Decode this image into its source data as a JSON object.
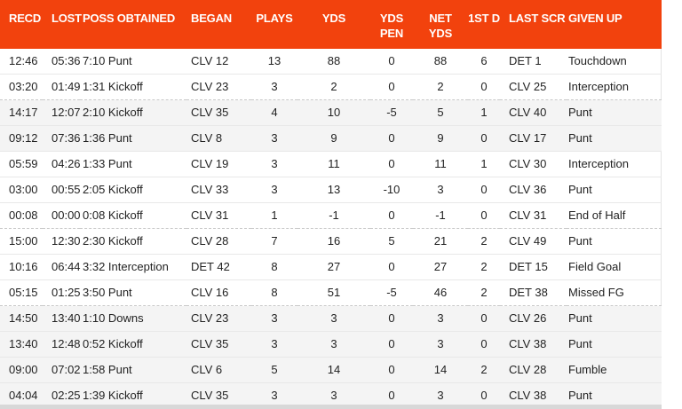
{
  "colors": {
    "header_bg": "#f2420d",
    "header_text": "#ffffff",
    "row_text": "#222222",
    "shaded_row_bg": "#f4f4f4",
    "row_divider": "#e8e8e8",
    "quarter_divider": "#c9c9c9",
    "bottom_bar": "#d8d8d8"
  },
  "table": {
    "columns": [
      {
        "key": "recd",
        "label_lines": [
          "RECD"
        ]
      },
      {
        "key": "lost",
        "label_lines": [
          "LOST"
        ]
      },
      {
        "key": "poss",
        "label_lines": [
          "POSS OBTAINED"
        ]
      },
      {
        "key": "began",
        "label_lines": [
          "BEGAN"
        ]
      },
      {
        "key": "plays",
        "label_lines": [
          "PLAYS"
        ]
      },
      {
        "key": "yds",
        "label_lines": [
          "YDS"
        ]
      },
      {
        "key": "yds_pen",
        "label_lines": [
          "YDS",
          "PEN"
        ]
      },
      {
        "key": "net_yds",
        "label_lines": [
          "NET",
          "YDS"
        ]
      },
      {
        "key": "first_d",
        "label_lines": [
          "1ST D"
        ]
      },
      {
        "key": "last_scr",
        "label_lines": [
          "LAST SCR"
        ]
      },
      {
        "key": "given_up",
        "label_lines": [
          "GIVEN UP"
        ]
      }
    ],
    "rows": [
      {
        "recd": "12:46",
        "lost": "05:36",
        "poss": "7:10 Punt",
        "began": "CLV 12",
        "plays": "13",
        "yds": "88",
        "yds_pen": "0",
        "net_yds": "88",
        "first_d": "6",
        "last_scr": "DET 1",
        "given_up": "Touchdown",
        "shaded": false,
        "quarter_break": false
      },
      {
        "recd": "03:20",
        "lost": "01:49",
        "poss": "1:31 Kickoff",
        "began": "CLV 23",
        "plays": "3",
        "yds": "2",
        "yds_pen": "0",
        "net_yds": "2",
        "first_d": "0",
        "last_scr": "CLV 25",
        "given_up": "Interception",
        "shaded": false,
        "quarter_break": false
      },
      {
        "recd": "14:17",
        "lost": "12:07",
        "poss": "2:10 Kickoff",
        "began": "CLV 35",
        "plays": "4",
        "yds": "10",
        "yds_pen": "-5",
        "net_yds": "5",
        "first_d": "1",
        "last_scr": "CLV 40",
        "given_up": "Punt",
        "shaded": true,
        "quarter_break": true
      },
      {
        "recd": "09:12",
        "lost": "07:36",
        "poss": "1:36 Punt",
        "began": "CLV 8",
        "plays": "3",
        "yds": "9",
        "yds_pen": "0",
        "net_yds": "9",
        "first_d": "0",
        "last_scr": "CLV 17",
        "given_up": "Punt",
        "shaded": true,
        "quarter_break": false
      },
      {
        "recd": "05:59",
        "lost": "04:26",
        "poss": "1:33 Punt",
        "began": "CLV 19",
        "plays": "3",
        "yds": "11",
        "yds_pen": "0",
        "net_yds": "11",
        "first_d": "1",
        "last_scr": "CLV 30",
        "given_up": "Interception",
        "shaded": false,
        "quarter_break": false
      },
      {
        "recd": "03:00",
        "lost": "00:55",
        "poss": "2:05 Kickoff",
        "began": "CLV 33",
        "plays": "3",
        "yds": "13",
        "yds_pen": "-10",
        "net_yds": "3",
        "first_d": "0",
        "last_scr": "CLV 36",
        "given_up": "Punt",
        "shaded": false,
        "quarter_break": false
      },
      {
        "recd": "00:08",
        "lost": "00:00",
        "poss": "0:08 Kickoff",
        "began": "CLV 31",
        "plays": "1",
        "yds": "-1",
        "yds_pen": "0",
        "net_yds": "-1",
        "first_d": "0",
        "last_scr": "CLV 31",
        "given_up": "End of Half",
        "shaded": false,
        "quarter_break": false
      },
      {
        "recd": "15:00",
        "lost": "12:30",
        "poss": "2:30 Kickoff",
        "began": "CLV 28",
        "plays": "7",
        "yds": "16",
        "yds_pen": "5",
        "net_yds": "21",
        "first_d": "2",
        "last_scr": "CLV 49",
        "given_up": "Punt",
        "shaded": false,
        "quarter_break": true
      },
      {
        "recd": "10:16",
        "lost": "06:44",
        "poss": "3:32 Interception",
        "began": "DET 42",
        "plays": "8",
        "yds": "27",
        "yds_pen": "0",
        "net_yds": "27",
        "first_d": "2",
        "last_scr": "DET 15",
        "given_up": "Field Goal",
        "shaded": false,
        "quarter_break": false
      },
      {
        "recd": "05:15",
        "lost": "01:25",
        "poss": "3:50 Punt",
        "began": "CLV 16",
        "plays": "8",
        "yds": "51",
        "yds_pen": "-5",
        "net_yds": "46",
        "first_d": "2",
        "last_scr": "DET 38",
        "given_up": "Missed FG",
        "shaded": false,
        "quarter_break": false
      },
      {
        "recd": "14:50",
        "lost": "13:40",
        "poss": "1:10 Downs",
        "began": "CLV 23",
        "plays": "3",
        "yds": "3",
        "yds_pen": "0",
        "net_yds": "3",
        "first_d": "0",
        "last_scr": "CLV 26",
        "given_up": "Punt",
        "shaded": true,
        "quarter_break": true
      },
      {
        "recd": "13:40",
        "lost": "12:48",
        "poss": "0:52 Kickoff",
        "began": "CLV 35",
        "plays": "3",
        "yds": "3",
        "yds_pen": "0",
        "net_yds": "3",
        "first_d": "0",
        "last_scr": "CLV 38",
        "given_up": "Punt",
        "shaded": true,
        "quarter_break": false
      },
      {
        "recd": "09:00",
        "lost": "07:02",
        "poss": "1:58 Punt",
        "began": "CLV 6",
        "plays": "5",
        "yds": "14",
        "yds_pen": "0",
        "net_yds": "14",
        "first_d": "2",
        "last_scr": "CLV 28",
        "given_up": "Fumble",
        "shaded": true,
        "quarter_break": false
      },
      {
        "recd": "04:04",
        "lost": "02:25",
        "poss": "1:39 Kickoff",
        "began": "CLV 35",
        "plays": "3",
        "yds": "3",
        "yds_pen": "0",
        "net_yds": "3",
        "first_d": "0",
        "last_scr": "CLV 38",
        "given_up": "Punt",
        "shaded": true,
        "quarter_break": false
      }
    ]
  }
}
